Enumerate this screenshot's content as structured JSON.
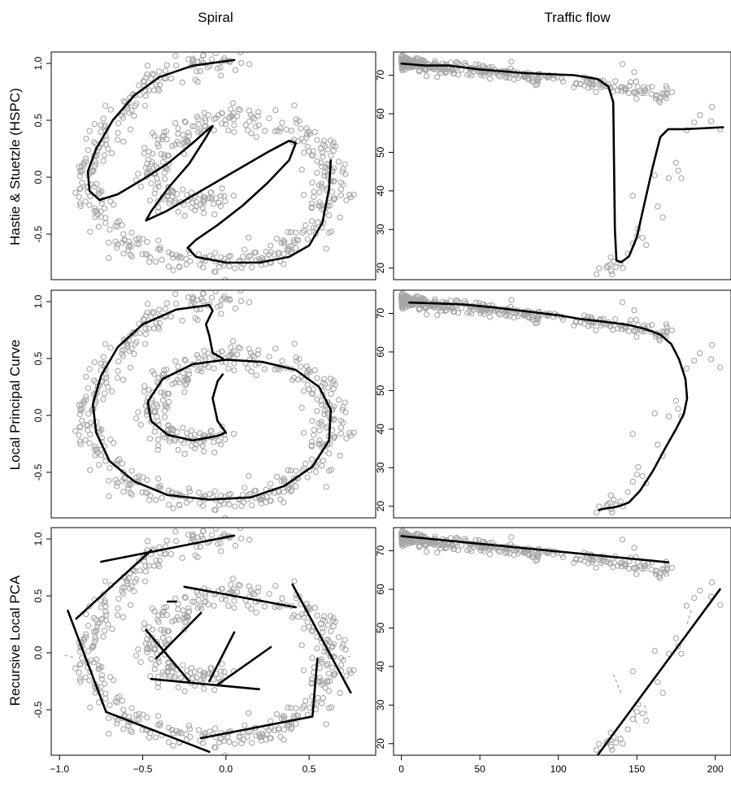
{
  "column_titles": [
    "Spiral",
    "Traffic flow"
  ],
  "row_labels": [
    "Hastie & Stuetzle (HSPC)",
    "Local Principal Curve",
    "Recursive Local PCA"
  ],
  "colors": {
    "points": "#a6a6a6",
    "curve": "#000000",
    "dashed": "#a6a6a6",
    "frame": "#000000"
  },
  "chart_data": [
    {
      "type": "scatter",
      "panel": "Spiral / Hastie & Stuetzle (HSPC)",
      "xlim": [
        -1.05,
        0.9
      ],
      "ylim": [
        -0.9,
        1.1
      ],
      "x_ticks": [],
      "y_ticks": [
        -0.5,
        0.0,
        0.5,
        1.0
      ],
      "point_set": "spiral",
      "curves": [
        [
          [
            0.05,
            1.03
          ],
          [
            -0.2,
            0.98
          ],
          [
            -0.4,
            0.88
          ],
          [
            -0.55,
            0.72
          ],
          [
            -0.68,
            0.5
          ],
          [
            -0.78,
            0.25
          ],
          [
            -0.83,
            0.05
          ],
          [
            -0.82,
            -0.12
          ],
          [
            -0.76,
            -0.2
          ],
          [
            -0.65,
            -0.15
          ],
          [
            -0.5,
            -0.02
          ],
          [
            -0.35,
            0.12
          ],
          [
            -0.2,
            0.3
          ],
          [
            -0.1,
            0.43
          ],
          [
            -0.08,
            0.45
          ],
          [
            -0.12,
            0.35
          ],
          [
            -0.22,
            0.12
          ],
          [
            -0.35,
            -0.1
          ],
          [
            -0.45,
            -0.3
          ],
          [
            -0.48,
            -0.38
          ],
          [
            -0.36,
            -0.3
          ],
          [
            -0.15,
            -0.12
          ],
          [
            0.05,
            0.05
          ],
          [
            0.25,
            0.22
          ],
          [
            0.38,
            0.32
          ],
          [
            0.42,
            0.3
          ],
          [
            0.38,
            0.15
          ],
          [
            0.25,
            -0.05
          ],
          [
            0.1,
            -0.25
          ],
          [
            -0.05,
            -0.42
          ],
          [
            -0.18,
            -0.55
          ],
          [
            -0.23,
            -0.62
          ],
          [
            -0.18,
            -0.7
          ],
          [
            0.0,
            -0.75
          ],
          [
            0.2,
            -0.75
          ],
          [
            0.38,
            -0.7
          ],
          [
            0.5,
            -0.6
          ],
          [
            0.58,
            -0.4
          ],
          [
            0.62,
            -0.1
          ],
          [
            0.63,
            0.15
          ]
        ]
      ],
      "segments": [],
      "dashes": []
    },
    {
      "type": "scatter",
      "panel": "Traffic flow / Hastie & Stuetzle (HSPC)",
      "xlim": [
        -5,
        210
      ],
      "ylim": [
        17,
        76
      ],
      "x_ticks": [],
      "y_ticks": [
        20,
        30,
        40,
        50,
        60,
        70
      ],
      "point_set": "traffic",
      "curves": [
        [
          [
            0,
            73
          ],
          [
            15,
            72.5
          ],
          [
            30,
            72.5
          ],
          [
            50,
            71.5
          ],
          [
            80,
            70.5
          ],
          [
            110,
            70
          ],
          [
            125,
            69
          ],
          [
            132,
            67
          ],
          [
            135,
            63
          ],
          [
            136,
            30
          ],
          [
            137,
            22
          ],
          [
            140,
            21.5
          ],
          [
            145,
            23
          ],
          [
            150,
            28
          ],
          [
            155,
            37
          ],
          [
            160,
            46
          ],
          [
            165,
            54
          ],
          [
            170,
            56
          ],
          [
            180,
            56
          ],
          [
            195,
            56.3
          ],
          [
            205,
            56.5
          ]
        ]
      ],
      "segments": [],
      "dashes": []
    },
    {
      "type": "scatter",
      "panel": "Spiral / Local Principal Curve",
      "xlim": [
        -1.05,
        0.9
      ],
      "ylim": [
        -0.9,
        1.1
      ],
      "x_ticks": [],
      "y_ticks": [
        -0.5,
        0.0,
        0.5,
        1.0
      ],
      "point_set": "spiral",
      "curves": [
        [
          [
            -0.1,
            0.97
          ],
          [
            -0.3,
            0.93
          ],
          [
            -0.5,
            0.8
          ],
          [
            -0.65,
            0.6
          ],
          [
            -0.75,
            0.35
          ],
          [
            -0.8,
            0.1
          ],
          [
            -0.78,
            -0.15
          ],
          [
            -0.7,
            -0.4
          ],
          [
            -0.55,
            -0.58
          ],
          [
            -0.35,
            -0.7
          ],
          [
            -0.1,
            -0.74
          ],
          [
            0.15,
            -0.72
          ],
          [
            0.35,
            -0.62
          ],
          [
            0.52,
            -0.45
          ],
          [
            0.62,
            -0.22
          ],
          [
            0.63,
            0.05
          ],
          [
            0.56,
            0.25
          ],
          [
            0.42,
            0.4
          ],
          [
            0.22,
            0.47
          ],
          [
            0.0,
            0.49
          ],
          [
            -0.2,
            0.45
          ],
          [
            -0.38,
            0.32
          ],
          [
            -0.47,
            0.12
          ],
          [
            -0.45,
            -0.05
          ],
          [
            -0.35,
            -0.17
          ],
          [
            -0.2,
            -0.22
          ],
          [
            -0.05,
            -0.18
          ],
          [
            0.0,
            -0.15
          ],
          [
            -0.05,
            -0.05
          ],
          [
            -0.08,
            0.15
          ],
          [
            -0.05,
            0.3
          ],
          [
            -0.02,
            0.36
          ]
        ],
        [
          [
            -0.02,
            0.5
          ],
          [
            -0.08,
            0.55
          ],
          [
            -0.1,
            0.7
          ],
          [
            -0.12,
            0.8
          ],
          [
            -0.08,
            0.92
          ],
          [
            -0.1,
            0.97
          ]
        ]
      ],
      "segments": [],
      "dashes": []
    },
    {
      "type": "scatter",
      "panel": "Traffic flow / Local Principal Curve",
      "xlim": [
        -5,
        210
      ],
      "ylim": [
        17,
        76
      ],
      "x_ticks": [],
      "y_ticks": [
        20,
        30,
        40,
        50,
        60,
        70
      ],
      "point_set": "traffic",
      "curves": [
        [
          [
            5,
            72.8
          ],
          [
            20,
            72.6
          ],
          [
            40,
            72.3
          ],
          [
            60,
            71.5
          ],
          [
            80,
            70.5
          ],
          [
            100,
            69.5
          ],
          [
            115,
            68.5
          ],
          [
            130,
            67.8
          ],
          [
            145,
            67
          ],
          [
            155,
            66
          ],
          [
            165,
            64.5
          ],
          [
            172,
            62
          ],
          [
            177,
            58
          ],
          [
            181,
            53
          ],
          [
            182,
            48
          ],
          [
            180,
            44
          ],
          [
            175,
            40
          ],
          [
            168,
            35
          ],
          [
            160,
            29
          ],
          [
            152,
            24
          ],
          [
            145,
            21
          ],
          [
            140,
            20.2
          ],
          [
            135,
            19.7
          ],
          [
            128,
            19.3
          ],
          [
            126,
            19
          ]
        ]
      ],
      "segments": [],
      "dashes": []
    },
    {
      "type": "scatter",
      "panel": "Spiral / Recursive Local PCA",
      "xlim": [
        -1.05,
        0.9
      ],
      "ylim": [
        -0.9,
        1.1
      ],
      "x_ticks": [
        -1.0,
        -0.5,
        0.0,
        0.5
      ],
      "y_ticks": [
        -0.5,
        0.0,
        0.5,
        1.0
      ],
      "point_set": "spiral",
      "curves": [],
      "segments": [
        [
          [
            -0.75,
            0.8
          ],
          [
            0.05,
            1.03
          ]
        ],
        [
          [
            -0.9,
            0.3
          ],
          [
            -0.45,
            0.9
          ]
        ],
        [
          [
            -0.95,
            0.37
          ],
          [
            -0.72,
            -0.52
          ]
        ],
        [
          [
            -0.72,
            -0.52
          ],
          [
            -0.1,
            -0.87
          ]
        ],
        [
          [
            -0.15,
            -0.75
          ],
          [
            0.52,
            -0.56
          ]
        ],
        [
          [
            0.52,
            -0.56
          ],
          [
            0.55,
            -0.05
          ]
        ],
        [
          [
            0.4,
            0.6
          ],
          [
            0.75,
            -0.35
          ]
        ],
        [
          [
            -0.25,
            0.58
          ],
          [
            0.42,
            0.4
          ]
        ],
        [
          [
            -0.45,
            -0.23
          ],
          [
            0.2,
            -0.32
          ]
        ],
        [
          [
            -0.48,
            0.2
          ],
          [
            -0.22,
            -0.25
          ]
        ],
        [
          [
            -0.42,
            -0.05
          ],
          [
            -0.15,
            0.35
          ]
        ],
        [
          [
            -0.3,
            0.45
          ],
          [
            -0.35,
            0.45
          ]
        ],
        [
          [
            -0.1,
            -0.25
          ],
          [
            0.05,
            0.18
          ]
        ],
        [
          [
            -0.05,
            -0.28
          ],
          [
            0.27,
            0.05
          ]
        ]
      ],
      "dashes": [
        [
          [
            -0.97,
            -0.02
          ],
          [
            -0.92,
            -0.04
          ]
        ],
        [
          [
            0.7,
            -0.05
          ],
          [
            0.75,
            -0.03
          ]
        ]
      ]
    },
    {
      "type": "scatter",
      "panel": "Traffic flow / Recursive Local PCA",
      "xlim": [
        -5,
        210
      ],
      "ylim": [
        17,
        76
      ],
      "x_ticks": [
        0,
        50,
        100,
        150,
        200
      ],
      "y_ticks": [
        20,
        30,
        40,
        50,
        60,
        70
      ],
      "point_set": "traffic",
      "curves": [],
      "segments": [
        [
          [
            0,
            73.8
          ],
          [
            170,
            67
          ]
        ],
        [
          [
            125,
            17
          ],
          [
            203,
            60
          ]
        ]
      ],
      "dashes": [
        [
          [
            135,
            38
          ],
          [
            140,
            33
          ]
        ],
        [
          [
            148,
            29
          ],
          [
            150,
            25
          ]
        ],
        [
          [
            182,
            51
          ],
          [
            185,
            55
          ]
        ],
        [
          [
            155,
            30
          ],
          [
            157,
            27
          ]
        ]
      ]
    }
  ]
}
